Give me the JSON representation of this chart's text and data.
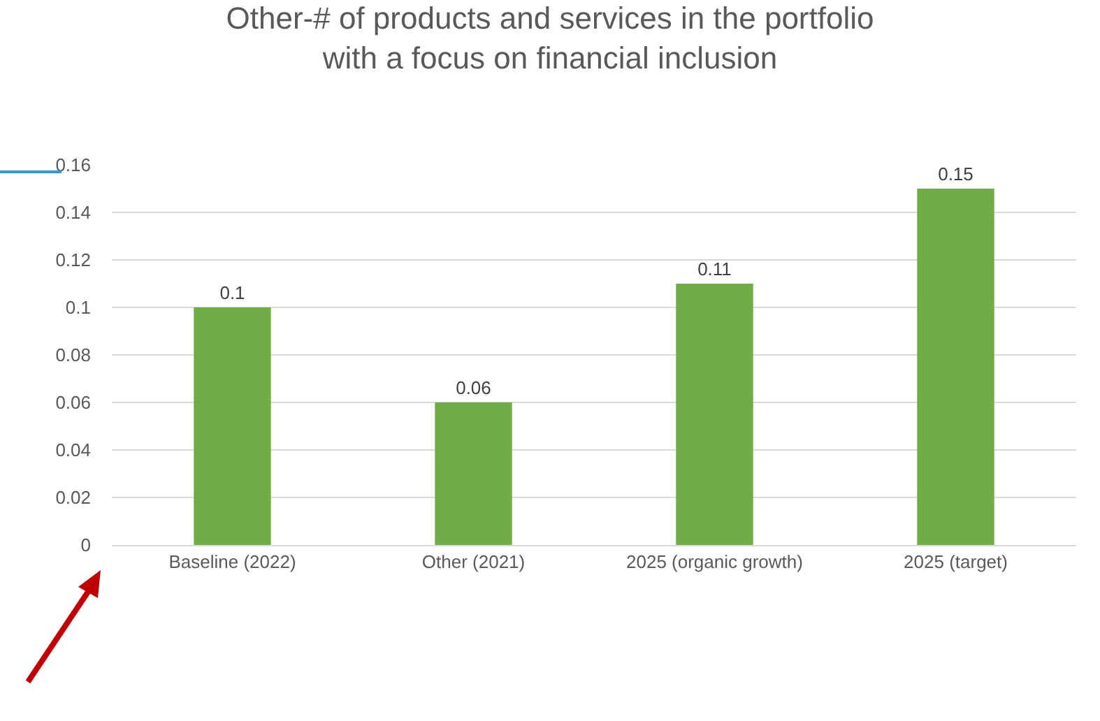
{
  "chart_data": {
    "type": "bar",
    "title": "Other-# of products and services in the portfolio\nwith a focus on financial inclusion",
    "categories": [
      "Baseline (2022)",
      "Other (2021)",
      "2025 (organic growth)",
      "2025 (target)"
    ],
    "values": [
      0.1,
      0.06,
      0.11,
      0.15
    ],
    "color": "#70ad47",
    "ylim": [
      0,
      0.16
    ],
    "yticks": [
      0,
      0.02,
      0.04,
      0.06,
      0.08,
      0.1,
      0.12,
      0.14,
      0.16
    ],
    "grid": "y",
    "data_labels": true
  }
}
